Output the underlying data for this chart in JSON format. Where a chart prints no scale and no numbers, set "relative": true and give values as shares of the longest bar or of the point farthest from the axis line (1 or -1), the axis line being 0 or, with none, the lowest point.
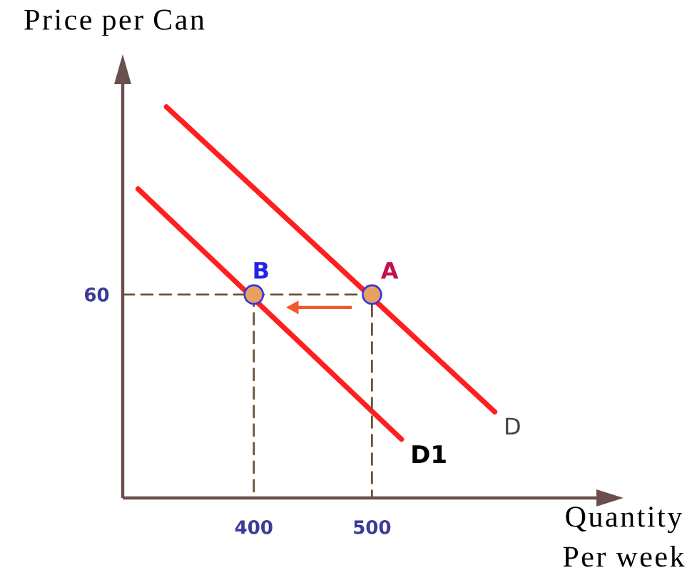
{
  "chart_data": {
    "type": "line",
    "relative": true,
    "xlabel": "Quantity Per week",
    "ylabel": "Price per Can",
    "xlim": [
      289,
      690
    ],
    "xticks": [
      400,
      500
    ],
    "series": [
      {
        "name": "D",
        "color": "#ff1f1f",
        "x": [
          326,
          604
        ],
        "values": [
          1,
          0.22
        ]
      },
      {
        "name": "D1",
        "color": "#ff1f1f",
        "x": [
          302,
          525
        ],
        "values": [
          0.79,
          0.15
        ]
      },
      {
        "color": "#6b5236",
        "x": [
          289,
          500,
          500
        ],
        "values": [
          0.52,
          0.52,
          0
        ],
        "line_style": "dashed"
      },
      {
        "color": "#6b5236",
        "x": [
          400,
          400
        ],
        "values": [
          0.52,
          0
        ],
        "line_style": "dashed"
      },
      {
        "type": "scatter",
        "color": "#e8a060",
        "x": [
          500,
          400
        ],
        "values": [
          0.52,
          0.52
        ],
        "marker": "circle"
      }
    ],
    "annotations": [
      {
        "text": "A",
        "x": 500,
        "y": 0.52
      },
      {
        "text": "B",
        "x": 400,
        "y": 0.52
      },
      {
        "text": "60",
        "x": 289,
        "y": 0.52
      }
    ]
  }
}
